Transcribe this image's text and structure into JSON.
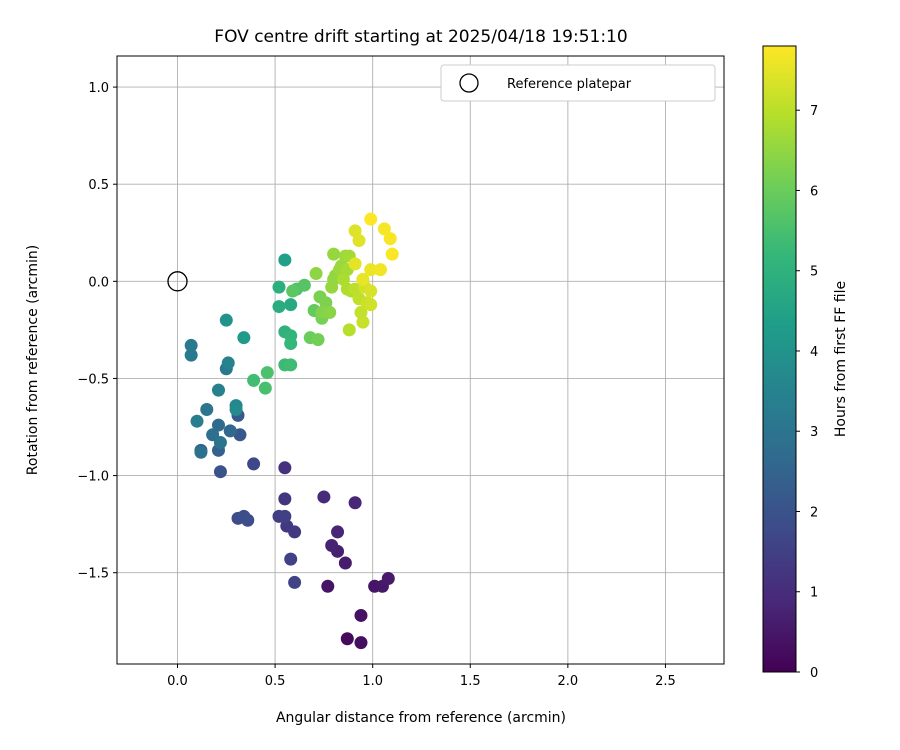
{
  "chart_data": {
    "type": "scatter",
    "title": "FOV centre drift starting at 2025/04/18 19:51:10",
    "xlabel": "Angular distance from reference (arcmin)",
    "ylabel": "Rotation from reference (arcmin)",
    "xlim": [
      -0.31,
      2.8
    ],
    "ylim": [
      -1.97,
      1.16
    ],
    "xticks": [
      "0.0",
      "0.5",
      "1.0",
      "1.5",
      "2.0",
      "2.5"
    ],
    "xtick_values": [
      0,
      0.5,
      1.0,
      1.5,
      2.0,
      2.5
    ],
    "yticks": [
      "1.0",
      "0.5",
      "0.0",
      "−0.5",
      "−1.0",
      "−1.5"
    ],
    "ytick_values": [
      1.0,
      0.5,
      0.0,
      -0.5,
      -1.0,
      -1.5
    ],
    "grid": true,
    "legend": {
      "placement": "top-right",
      "entries": [
        {
          "label": "Reference platepar",
          "marker": "open-circle"
        }
      ]
    },
    "reference_point": {
      "x": 0,
      "y": 0
    },
    "colorbar": {
      "label": "Hours from first FF file",
      "range": [
        0,
        7.8
      ],
      "ticks": [
        "0",
        "1",
        "2",
        "3",
        "4",
        "5",
        "6",
        "7"
      ],
      "tick_values": [
        0,
        1,
        2,
        3,
        4,
        5,
        6,
        7
      ],
      "colormap": "viridis",
      "colors": [
        "#440154",
        "#482878",
        "#3e4989",
        "#31688e",
        "#26828e",
        "#1f9e89",
        "#35b779",
        "#6ece58",
        "#b5de2b",
        "#fde725"
      ]
    },
    "series": [
      {
        "points": [
          [
            0.87,
            -1.84,
            0.2
          ],
          [
            0.94,
            -1.86,
            0.3
          ],
          [
            0.94,
            -1.72,
            0.35
          ],
          [
            0.77,
            -1.57,
            0.4
          ],
          [
            1.01,
            -1.57,
            0.45
          ],
          [
            1.05,
            -1.57,
            0.5
          ],
          [
            1.08,
            -1.53,
            0.55
          ],
          [
            0.86,
            -1.45,
            0.6
          ],
          [
            0.82,
            -1.39,
            0.7
          ],
          [
            0.79,
            -1.36,
            0.75
          ],
          [
            0.82,
            -1.29,
            0.8
          ],
          [
            0.91,
            -1.14,
            0.85
          ],
          [
            0.75,
            -1.11,
            0.95
          ],
          [
            0.55,
            -0.96,
            1.1
          ],
          [
            0.55,
            -1.12,
            1.2
          ],
          [
            0.6,
            -1.29,
            1.3
          ],
          [
            0.56,
            -1.26,
            1.35
          ],
          [
            0.52,
            -1.21,
            1.45
          ],
          [
            0.55,
            -1.21,
            1.5
          ],
          [
            0.58,
            -1.43,
            1.55
          ],
          [
            0.6,
            -1.55,
            1.6
          ],
          [
            0.39,
            -0.94,
            1.7
          ],
          [
            0.31,
            -1.22,
            1.8
          ],
          [
            0.34,
            -1.21,
            1.85
          ],
          [
            0.36,
            -1.23,
            1.9
          ],
          [
            0.22,
            -0.98,
            2.0
          ],
          [
            0.32,
            -0.79,
            2.15
          ],
          [
            0.31,
            -0.69,
            2.2
          ],
          [
            0.21,
            -0.87,
            2.4
          ],
          [
            0.12,
            -0.87,
            2.5
          ],
          [
            0.27,
            -0.77,
            2.6
          ],
          [
            0.21,
            -0.74,
            2.7
          ],
          [
            0.18,
            -0.79,
            2.8
          ],
          [
            0.12,
            -0.88,
            2.9
          ],
          [
            0.22,
            -0.83,
            3.0
          ],
          [
            0.15,
            -0.66,
            3.05
          ],
          [
            0.25,
            -0.45,
            3.1
          ],
          [
            0.07,
            -0.38,
            3.15
          ],
          [
            0.07,
            -0.33,
            3.2
          ],
          [
            0.1,
            -0.72,
            3.3
          ],
          [
            0.21,
            -0.56,
            3.4
          ],
          [
            0.26,
            -0.42,
            3.5
          ],
          [
            0.3,
            -0.64,
            3.6
          ],
          [
            0.3,
            -0.66,
            3.7
          ],
          [
            0.25,
            -0.2,
            4.0
          ],
          [
            0.34,
            -0.29,
            4.2
          ],
          [
            0.55,
            0.11,
            4.4
          ],
          [
            0.58,
            -0.12,
            4.7
          ],
          [
            0.52,
            -0.13,
            4.8
          ],
          [
            0.52,
            -0.03,
            4.9
          ],
          [
            0.55,
            -0.26,
            5.0
          ],
          [
            0.58,
            -0.28,
            5.1
          ],
          [
            0.58,
            -0.32,
            5.2
          ],
          [
            0.55,
            -0.43,
            5.3
          ],
          [
            0.58,
            -0.43,
            5.35
          ],
          [
            0.39,
            -0.51,
            5.4
          ],
          [
            0.45,
            -0.55,
            5.5
          ],
          [
            0.46,
            -0.47,
            5.55
          ],
          [
            0.61,
            -0.04,
            5.6
          ],
          [
            0.65,
            -0.02,
            5.7
          ],
          [
            0.59,
            -0.05,
            5.8
          ],
          [
            0.7,
            -0.15,
            5.9
          ],
          [
            0.68,
            -0.29,
            6.0
          ],
          [
            0.72,
            -0.3,
            6.1
          ],
          [
            0.74,
            -0.19,
            6.15
          ],
          [
            0.73,
            -0.08,
            6.2
          ],
          [
            0.76,
            -0.11,
            6.25
          ],
          [
            0.74,
            -0.16,
            6.3
          ],
          [
            0.76,
            -0.16,
            6.35
          ],
          [
            0.78,
            -0.16,
            6.4
          ],
          [
            0.71,
            0.04,
            6.45
          ],
          [
            0.81,
            0.03,
            6.5
          ],
          [
            0.8,
            0.14,
            6.55
          ],
          [
            0.84,
            0.08,
            6.6
          ],
          [
            0.86,
            0.13,
            6.65
          ],
          [
            0.88,
            0.13,
            6.7
          ],
          [
            0.87,
            0.06,
            6.75
          ],
          [
            0.85,
            0.01,
            6.8
          ],
          [
            0.87,
            -0.04,
            6.85
          ],
          [
            0.89,
            -0.05,
            6.9
          ],
          [
            0.88,
            -0.25,
            6.95
          ],
          [
            0.91,
            -0.04,
            7.0
          ],
          [
            0.93,
            -0.09,
            7.05
          ],
          [
            0.94,
            -0.16,
            7.1
          ],
          [
            0.95,
            -0.21,
            7.15
          ],
          [
            0.97,
            -0.11,
            7.2
          ],
          [
            0.99,
            -0.12,
            7.25
          ],
          [
            0.96,
            -0.03,
            7.3
          ],
          [
            0.99,
            -0.05,
            7.35
          ],
          [
            0.91,
            0.26,
            7.4
          ],
          [
            0.93,
            0.21,
            7.45
          ],
          [
            0.91,
            0.09,
            7.5
          ],
          [
            0.95,
            0.01,
            7.55
          ],
          [
            0.99,
            0.06,
            7.6
          ],
          [
            1.04,
            0.06,
            7.65
          ],
          [
            1.06,
            0.27,
            7.7
          ],
          [
            1.09,
            0.22,
            7.72
          ],
          [
            1.1,
            0.14,
            7.75
          ],
          [
            0.99,
            0.32,
            7.8
          ],
          [
            0.8,
            0.01,
            6.5
          ],
          [
            0.79,
            -0.03,
            6.55
          ],
          [
            0.83,
            0.06,
            6.6
          ]
        ]
      }
    ]
  }
}
